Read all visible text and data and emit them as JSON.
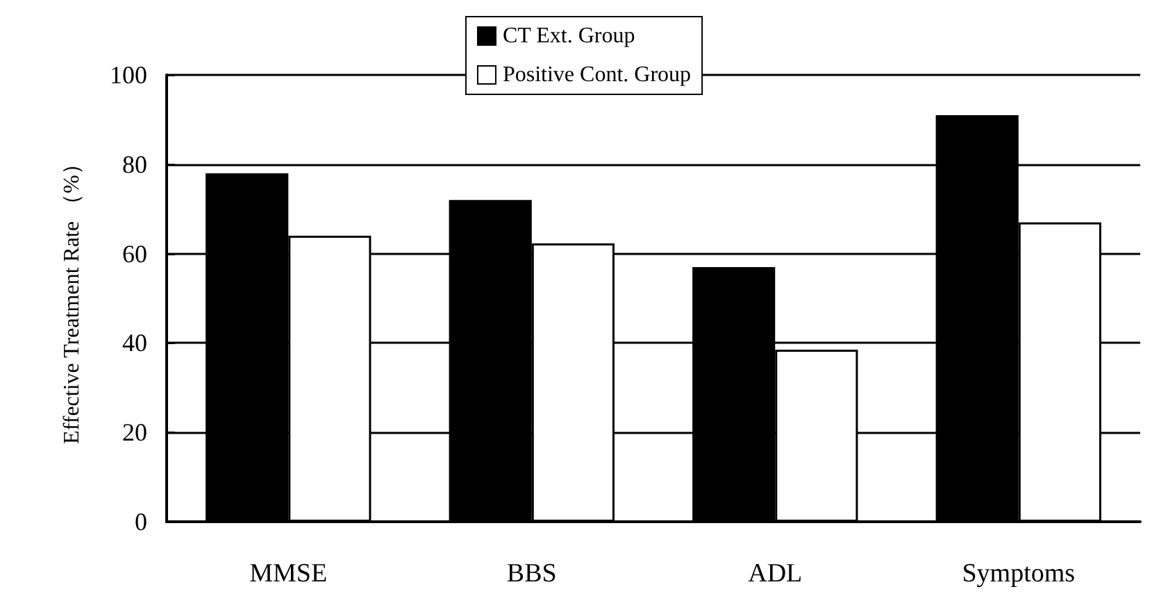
{
  "chart_data": {
    "type": "bar",
    "ylabel": "Effective Treatment Rate （%）",
    "categories": [
      "MMSE",
      "BBS",
      "ADL",
      "Symptoms"
    ],
    "series": [
      {
        "name": "CT Ext. Group",
        "color": "#000000",
        "values": [
          78,
          72,
          57,
          91
        ]
      },
      {
        "name": "Positive Cont. Group",
        "color": "#ffffff",
        "values": [
          64,
          62.3,
          38.5,
          67
        ]
      }
    ],
    "ylim": [
      0,
      100
    ],
    "yticks": [
      0,
      20,
      40,
      60,
      80,
      100
    ],
    "grid": "y",
    "legend": "top"
  }
}
